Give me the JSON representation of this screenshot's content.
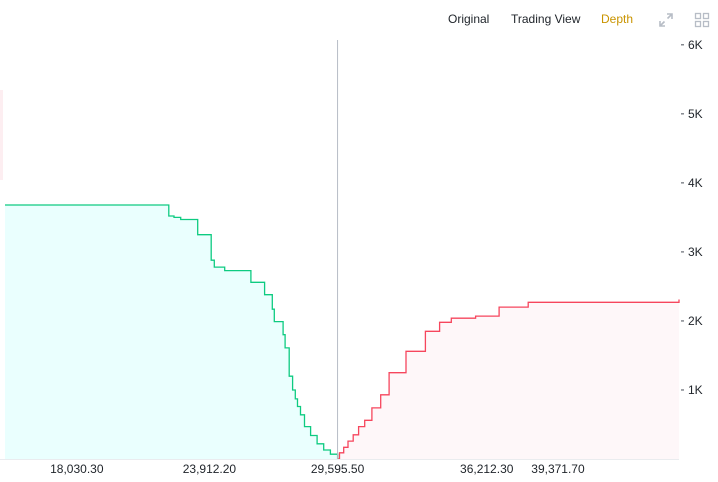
{
  "toolbar": {
    "tabs": [
      {
        "label": "Original",
        "active": false
      },
      {
        "label": "Trading View",
        "active": false
      },
      {
        "label": "Depth",
        "active": true
      }
    ],
    "icons": [
      "expand-icon",
      "grid-layout-icon"
    ],
    "active_color": "#c99400",
    "icon_color": "#b7bdc6"
  },
  "chart_data": {
    "type": "area",
    "title": "",
    "xlabel": "",
    "ylabel": "",
    "x_ticks": [
      "18,030.30",
      "23,912.20",
      "29,595.50",
      "36,212.30",
      "39,371.70"
    ],
    "x_tick_values": [
      18030.3,
      23912.2,
      29595.5,
      36212.3,
      39371.7
    ],
    "y_ticks": [
      "1K",
      "2K",
      "3K",
      "4K",
      "5K",
      "6K"
    ],
    "y_tick_values": [
      1000,
      2000,
      3000,
      4000,
      5000,
      6000
    ],
    "xlim": [
      14845,
      44740
    ],
    "ylim": [
      0,
      6070
    ],
    "mid_price": 29595.5,
    "grid": false,
    "series": [
      {
        "side": "bid",
        "color": "#0ecb81",
        "fill": "#eafffe",
        "x": [
          14845,
          20280,
          22110,
          22340,
          22640,
          23390,
          23990,
          24130,
          24590,
          25750,
          26360,
          26700,
          26790,
          27180,
          27270,
          27450,
          27600,
          27720,
          27820,
          27950,
          28130,
          28400,
          28690,
          28980,
          29280,
          29595.5
        ],
        "y": [
          3680,
          3680,
          3520,
          3500,
          3470,
          3250,
          2880,
          2780,
          2730,
          2560,
          2380,
          2170,
          1990,
          1800,
          1610,
          1200,
          1000,
          870,
          760,
          640,
          470,
          340,
          220,
          130,
          70,
          0
        ]
      },
      {
        "side": "ask",
        "color": "#f6465d",
        "fill": "#fef7f9",
        "x": [
          29595.5,
          29680,
          29870,
          30060,
          30290,
          30530,
          30800,
          31120,
          31510,
          31880,
          32630,
          33490,
          34120,
          34640,
          35720,
          36760,
          38050,
          44740
        ],
        "y": [
          0,
          90,
          170,
          260,
          350,
          470,
          560,
          740,
          930,
          1250,
          1560,
          1850,
          1980,
          2040,
          2070,
          2200,
          2270,
          2310
        ]
      }
    ]
  }
}
